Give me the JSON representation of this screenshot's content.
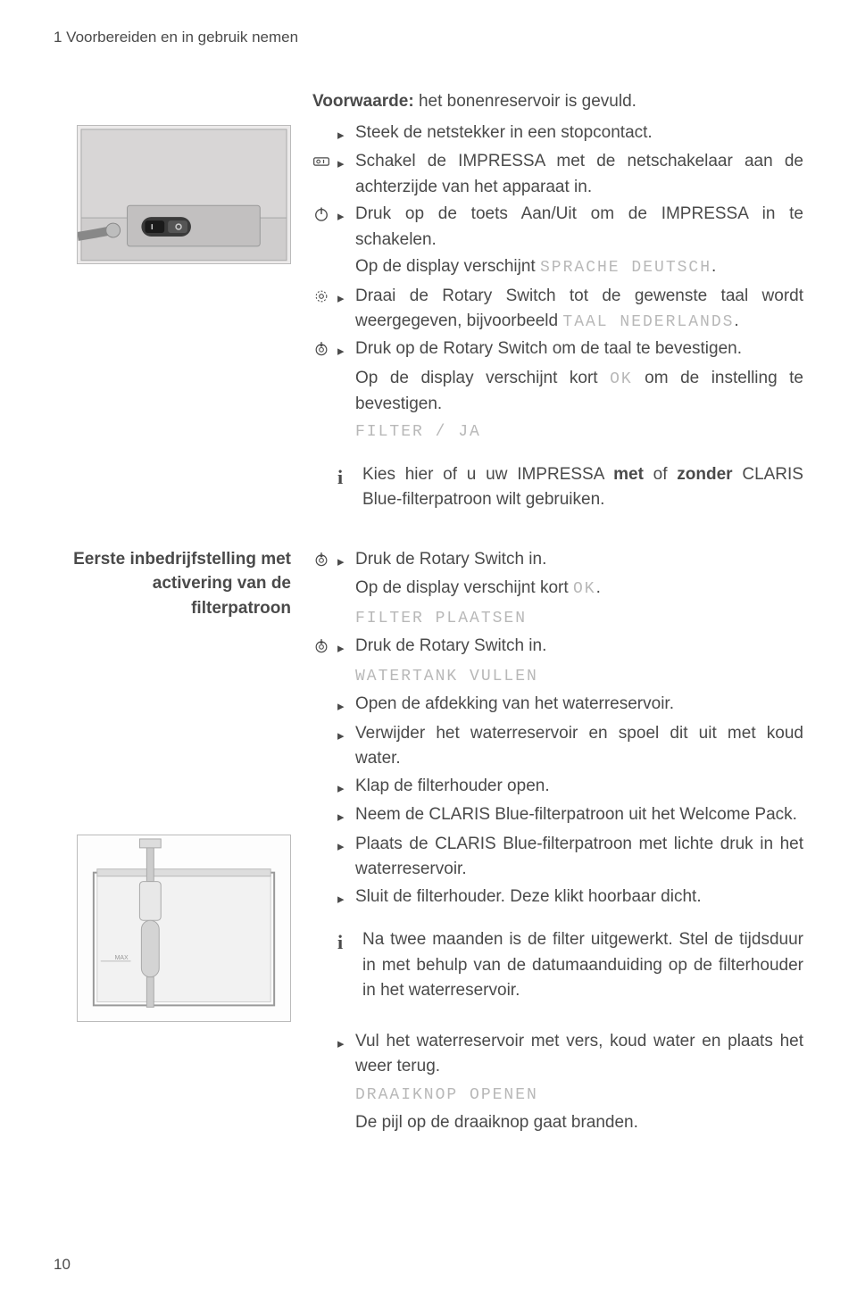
{
  "chapter_header": "1   Voorbereiden en in gebruik nemen",
  "page_number": "10",
  "colors": {
    "text": "#4a4a4a",
    "lcd": "#b8b8b8",
    "bg": "#ffffff",
    "illus_border": "#bbbbbb",
    "illus_fill": "#dcdcdc"
  },
  "precondition": {
    "label": "Voorwaarde:",
    "text": " het bonenreservoir is gevuld."
  },
  "block1": {
    "steps": [
      {
        "icon": "",
        "text": "Steek de netstekker in een stopcontact."
      },
      {
        "icon": "switch",
        "text": "Schakel de IMPRESSA met de netschakelaar aan de achterzijde van het apparaat in."
      },
      {
        "icon": "power",
        "text": "Druk op de toets Aan/Uit om de IMPRESSA in te schakelen."
      },
      {
        "icon": "",
        "cont": true,
        "text_pre": "Op de display verschijnt ",
        "lcd": "SPRACHE DEUTSCH",
        "text_post": "."
      },
      {
        "icon": "rotary-turn",
        "text_pre": "Draai de Rotary Switch tot de gewenste taal wordt weergegeven, bijvoorbeeld ",
        "lcd": "TAAL NEDERLANDS",
        "text_post": "."
      },
      {
        "icon": "rotary-press",
        "text": "Druk op de Rotary Switch om de taal te bevestigen."
      },
      {
        "icon": "",
        "cont": true,
        "text_pre": "Op de display verschijnt kort ",
        "lcd": "OK",
        "text_post": " om de instelling te bevestigen."
      },
      {
        "icon": "",
        "cont": true,
        "lcd": "FILTER / JA"
      }
    ],
    "info": {
      "pre": "Kies hier of u uw IMPRESSA ",
      "bold1": "met",
      "mid": " of ",
      "bold2": "zonder",
      "post": " CLARIS Blue-filterpatroon wilt gebruiken."
    }
  },
  "block2": {
    "heading_l1": "Eerste inbedrijfstelling met",
    "heading_l2": "activering van de",
    "heading_l3": "filterpatroon",
    "steps": [
      {
        "icon": "rotary-press",
        "text": "Druk de Rotary Switch in."
      },
      {
        "icon": "",
        "cont": true,
        "text_pre": "Op de display verschijnt kort ",
        "lcd": "OK",
        "text_post": "."
      },
      {
        "icon": "",
        "cont": true,
        "lcd": "FILTER PLAATSEN"
      },
      {
        "icon": "rotary-press",
        "text": "Druk de Rotary Switch in."
      },
      {
        "icon": "",
        "cont": true,
        "lcd": "WATERTANK VULLEN"
      },
      {
        "icon": "",
        "text": "Open de afdekking van het waterreservoir."
      },
      {
        "icon": "",
        "text": "Verwijder het waterreservoir en spoel dit uit met koud water."
      },
      {
        "icon": "",
        "text": "Klap de filterhouder open."
      },
      {
        "icon": "",
        "text": "Neem de CLARIS Blue-filterpatroon uit het Welcome Pack."
      },
      {
        "icon": "",
        "text": "Plaats de CLARIS Blue-filterpatroon met lichte druk in het waterreservoir."
      },
      {
        "icon": "",
        "text": "Sluit de filterhouder. Deze klikt hoorbaar dicht."
      }
    ],
    "info": "Na twee maanden is de filter uitgewerkt. Stel de tijdsduur in met behulp van de datumaanduiding op de filterhouder in het waterreservoir.",
    "steps2": [
      {
        "icon": "",
        "text": "Vul het waterreservoir met vers, koud water en plaats het weer terug."
      },
      {
        "icon": "",
        "cont": true,
        "lcd": "DRAAIKNOP OPENEN"
      },
      {
        "icon": "",
        "cont": true,
        "text": "De pijl op de draaiknop gaat branden."
      }
    ]
  }
}
